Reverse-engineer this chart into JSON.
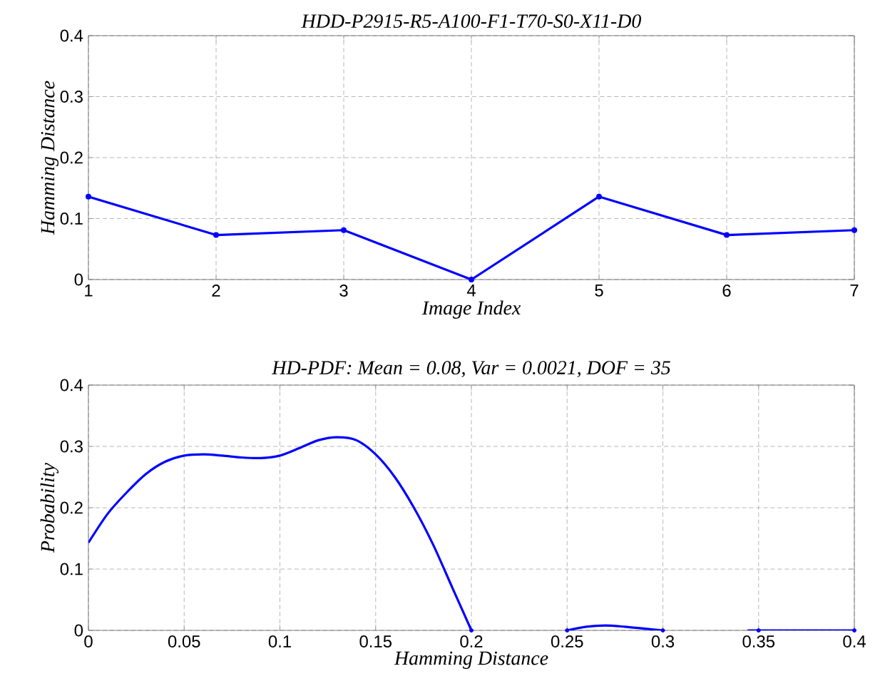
{
  "chart_data": [
    {
      "type": "line",
      "title": "HDD-P2915-R5-A100-F1-T70-S0-X11-D0",
      "xlabel": "Image Index",
      "ylabel": "Hamming Distance",
      "x": [
        1,
        2,
        3,
        4,
        5,
        6,
        7
      ],
      "xlim": [
        1,
        7
      ],
      "xticks": [
        1,
        2,
        3,
        4,
        5,
        6,
        7
      ],
      "ylim": [
        0,
        0.4
      ],
      "yticks": [
        0,
        0.1,
        0.2,
        0.3,
        0.4
      ],
      "grid": true,
      "marker": "circle",
      "line_style": "solid",
      "series": [
        {
          "color": "#0000ff",
          "values": [
            0.136,
            0.073,
            0.081,
            0,
            0.136,
            0.073,
            0.081
          ]
        }
      ]
    },
    {
      "type": "line",
      "title": "HD-PDF: Mean =  0.08, Var = 0.0021, DOF = 35",
      "xlabel": "Hamming Distance",
      "ylabel": "Probability",
      "xlim": [
        0,
        0.4
      ],
      "xticks": [
        0,
        0.05,
        0.1,
        0.15,
        0.2,
        0.25,
        0.3,
        0.35,
        0.4
      ],
      "ylim": [
        0,
        0.4
      ],
      "yticks": [
        0,
        0.1,
        0.2,
        0.3,
        0.4
      ],
      "grid": true,
      "line_style": "solid",
      "series": [
        {
          "color": "#0000ff",
          "marker": "none",
          "x": [
            0,
            0.01,
            0.02,
            0.03,
            0.04,
            0.05,
            0.06,
            0.07,
            0.08,
            0.09,
            0.1,
            0.11,
            0.12,
            0.13,
            0.14,
            0.15,
            0.16,
            0.17,
            0.18,
            0.19,
            0.2,
            0.225,
            0.25,
            0.26,
            0.27,
            0.28,
            0.29,
            0.3,
            0.32,
            0.345,
            0.35,
            0.4
          ],
          "values": [
            0.143,
            0.19,
            0.225,
            0.255,
            0.275,
            0.285,
            0.287,
            0.285,
            0.282,
            0.281,
            0.285,
            0.297,
            0.31,
            0.315,
            0.31,
            0.287,
            0.25,
            0.2,
            0.14,
            0.07,
            0,
            null,
            0,
            0.006,
            0.008,
            0.006,
            0.003,
            0,
            null,
            0,
            0,
            0
          ]
        },
        {
          "type": "scatter",
          "color": "#0000ff",
          "marker": "circle",
          "x": [
            0.2,
            0.25,
            0.3,
            0.35,
            0.4
          ],
          "values": [
            0,
            0,
            0,
            0,
            0
          ]
        }
      ]
    }
  ]
}
